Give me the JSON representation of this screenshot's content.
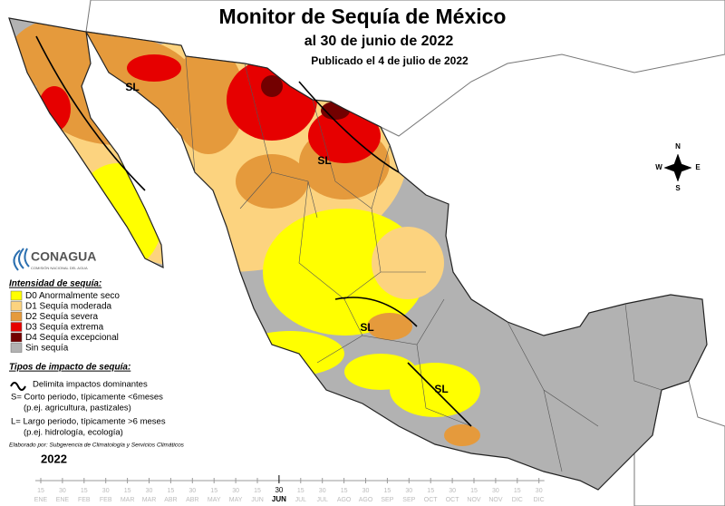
{
  "header": {
    "title": "Monitor de Sequía de México",
    "subtitle": "al 30 de junio de 2022",
    "published": "Publicado el 4 de julio de 2022"
  },
  "map": {
    "labels": [
      "SL",
      "SL",
      "SL",
      "SL"
    ],
    "compass": {
      "n": "N",
      "s": "S",
      "w": "W",
      "e": "E"
    }
  },
  "logo": {
    "name": "CONAGUA",
    "subtitle": "COMISIÓN NACIONAL DEL AGUA"
  },
  "legend": {
    "title": "Intensidad de sequía:",
    "items": [
      {
        "label": "D0 Anormalmente seco",
        "color": "#ffff00"
      },
      {
        "label": "D1 Sequía moderada",
        "color": "#fcd37f"
      },
      {
        "label": "D2 Sequía severa",
        "color": "#e59a3c"
      },
      {
        "label": "D3 Sequía extrema",
        "color": "#e60000"
      },
      {
        "label": "D4 Sequía excepcional",
        "color": "#730000"
      },
      {
        "label": "Sin sequía",
        "color": "#b2b2b2"
      }
    ]
  },
  "impact": {
    "title": "Tipos de impacto de sequía:",
    "line": "Delimita impactos dominantes",
    "short": "S= Corto periodo, típicamente <6meses",
    "short_example": "(p.ej. agricultura, pastizales)",
    "long": "L= Largo periodo, típicamente >6 meses",
    "long_example": "(p.ej. hidrología, ecología)"
  },
  "credit": "Elaborado por: Subgerencia de Climatología y Servicios Climáticos",
  "timeline": {
    "year": "2022",
    "days": [
      "15",
      "30",
      "15",
      "30",
      "15",
      "30",
      "15",
      "30",
      "15",
      "30",
      "15",
      "30",
      "15",
      "30",
      "15",
      "30",
      "15",
      "30",
      "15",
      "30",
      "15",
      "30",
      "15",
      "30"
    ],
    "months": [
      "ENE",
      "ENE",
      "FEB",
      "FEB",
      "MAR",
      "MAR",
      "ABR",
      "ABR",
      "MAY",
      "MAY",
      "JUN",
      "JUN",
      "JUL",
      "JUL",
      "AGO",
      "AGO",
      "SEP",
      "SEP",
      "OCT",
      "OCT",
      "NOV",
      "NOV",
      "DIC",
      "DIC"
    ],
    "current_day": "30",
    "current_month": "JUN"
  }
}
